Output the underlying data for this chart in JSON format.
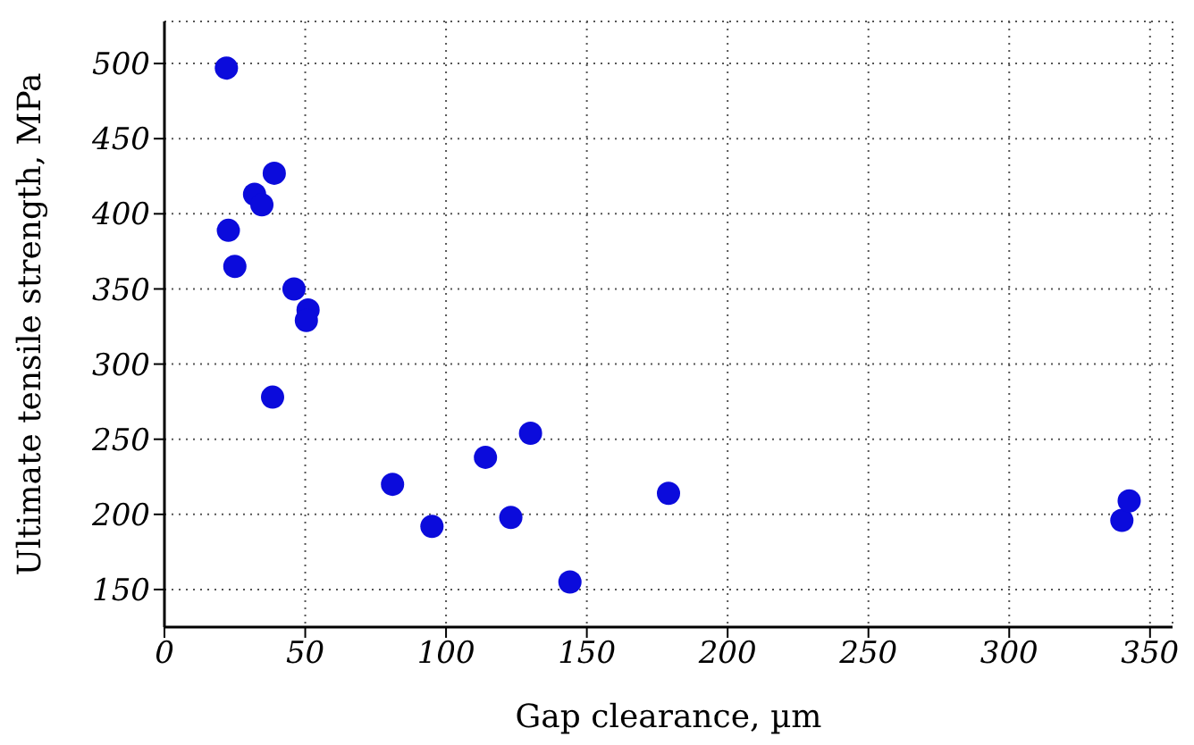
{
  "chart_data": {
    "type": "scatter",
    "xlabel": "Gap clearance, µm",
    "ylabel": "Ultimate tensile strength, MPa",
    "x": [
      22,
      22.7,
      25,
      32,
      34.6,
      39,
      38.4,
      46,
      51,
      50.4,
      81,
      95,
      114,
      130,
      123,
      144,
      179,
      340,
      342.6
    ],
    "values": [
      497,
      389,
      365,
      413,
      406,
      427,
      278,
      350,
      336,
      329,
      220,
      192,
      238,
      254,
      198,
      155,
      214,
      196,
      209
    ],
    "color": "#0b0bdc",
    "marker": "circle",
    "xlim": [
      0,
      358
    ],
    "xticks": [
      0,
      50,
      100,
      150,
      200,
      250,
      300,
      350
    ],
    "ylim": [
      125,
      528
    ],
    "yticks": [
      150,
      200,
      250,
      300,
      350,
      400,
      450,
      500
    ],
    "grid": true
  }
}
